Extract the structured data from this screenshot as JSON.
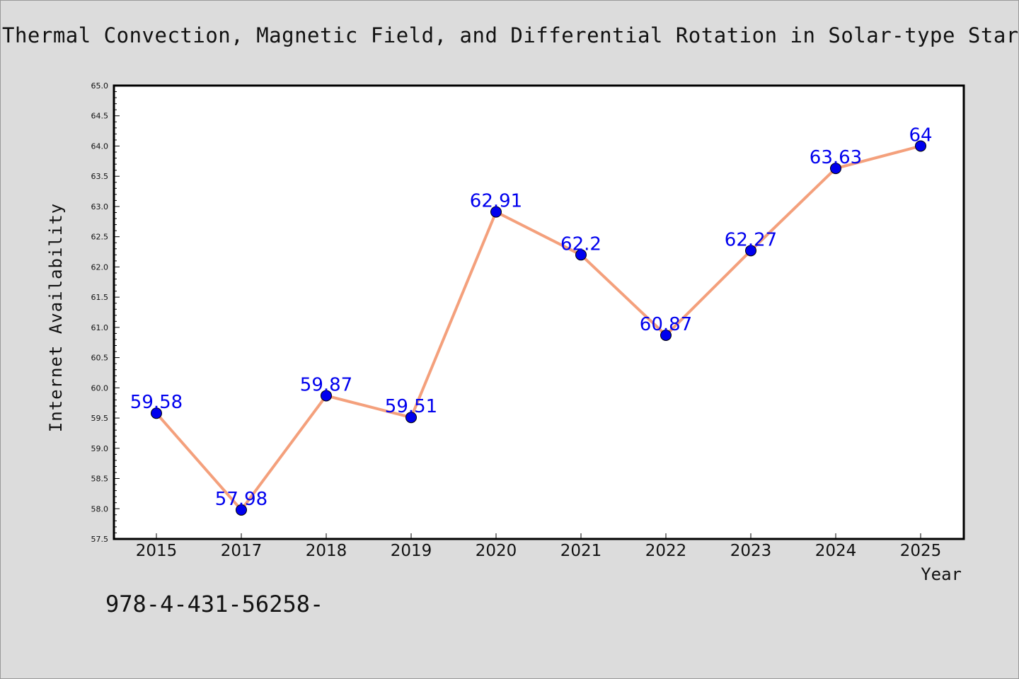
{
  "chart_data": {
    "type": "line",
    "title": "Thermal Convection, Magnetic Field, and Differential Rotation in Solar-type Star",
    "xlabel": "Year",
    "ylabel": "Internet Availability",
    "categories": [
      "2015",
      "2017",
      "2018",
      "2019",
      "2020",
      "2021",
      "2022",
      "2023",
      "2024",
      "2025"
    ],
    "series": [
      {
        "values": [
          59.58,
          57.98,
          59.87,
          59.51,
          62.91,
          62.2,
          60.87,
          62.27,
          63.63,
          64
        ],
        "labels": [
          "59.58",
          "57.98",
          "59.87",
          "59.51",
          "62.91",
          "62.2",
          "60.87",
          "62.27",
          "63.63",
          "64"
        ],
        "line_color": "#f4a07c",
        "marker_color": "#0000ee"
      }
    ],
    "ylim": [
      57.5,
      65.0
    ],
    "yticks": [
      "57.5",
      "58.0",
      "58.5",
      "59.0",
      "59.5",
      "60.0",
      "60.5",
      "61.0",
      "61.5",
      "62.0",
      "62.5",
      "63.0",
      "63.5",
      "64.0",
      "64.5",
      "65.0"
    ],
    "grid": false,
    "legend": "none"
  },
  "footer": {
    "code": "978-4-431-56258-"
  },
  "colors": {
    "background": "#dcdcdc",
    "plot_area": "#ffffff",
    "line": "#f4a07c",
    "marker": "#0000ee",
    "label": "#0000ee"
  }
}
